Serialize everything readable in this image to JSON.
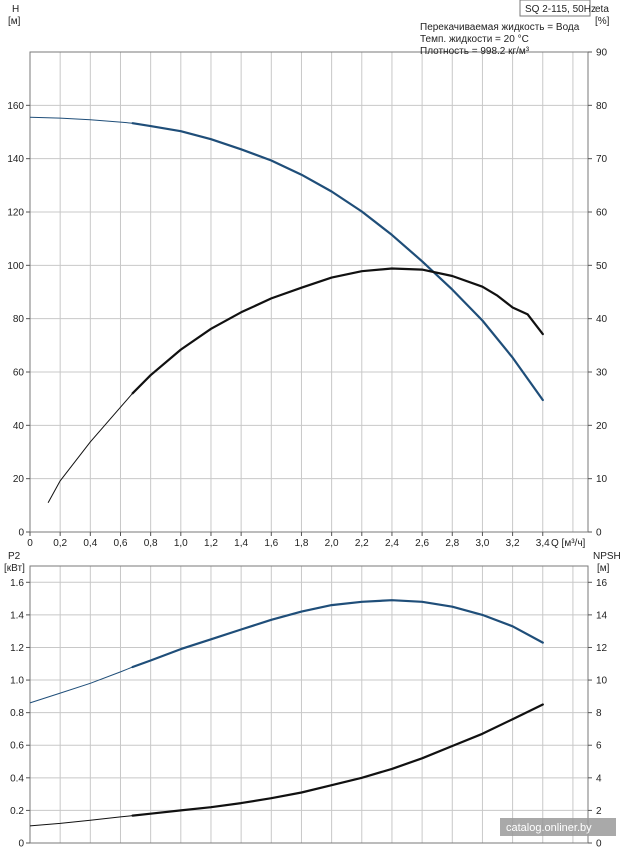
{
  "chart_data": [
    {
      "type": "line",
      "title": "SQ 2-115, 50Hz",
      "annotations": [
        "Перекачиваемая жидкость = Вода",
        "Темп. жидкости = 20 °C",
        "Плотность = 998.2 кг/м³"
      ],
      "xlabel": "Q [м³/ч]",
      "xlim": [
        0,
        3.7
      ],
      "x_ticks": [
        "0",
        "0,2",
        "0,4",
        "0,6",
        "0,8",
        "1,0",
        "1,2",
        "1,4",
        "1,6",
        "1,8",
        "2,0",
        "2,2",
        "2,4",
        "2,6",
        "2,8",
        "3,0",
        "3,2",
        "3,4"
      ],
      "ylabel_left": "H",
      "ylabel_left_unit": "[м]",
      "ylim_left": [
        0,
        180
      ],
      "y_ticks_left": [
        "0",
        "20",
        "40",
        "60",
        "80",
        "100",
        "120",
        "140",
        "160"
      ],
      "ylabel_right": "eta",
      "ylabel_right_unit": "[%]",
      "ylim_right": [
        0,
        90
      ],
      "y_ticks_right": [
        "0",
        "10",
        "20",
        "30",
        "40",
        "50",
        "60",
        "70",
        "80",
        "90"
      ],
      "grid": true,
      "series": [
        {
          "axis": "left",
          "color": "#1f4e79",
          "x": [
            0,
            0.2,
            0.4,
            0.6,
            0.68,
            0.8,
            1.0,
            1.2,
            1.4,
            1.6,
            1.8,
            2.0,
            2.2,
            2.4,
            2.6,
            2.8,
            3.0,
            3.2,
            3.4
          ],
          "values": [
            155.5,
            155.2,
            154.6,
            153.7,
            153.3,
            152.2,
            150.3,
            147.3,
            143.5,
            139.3,
            134.0,
            127.7,
            120.2,
            111.4,
            101.5,
            90.9,
            79.3,
            65.4,
            49.5
          ],
          "thin_until": 0.68
        },
        {
          "axis": "right",
          "color": "#111111",
          "x": [
            0.12,
            0.2,
            0.4,
            0.6,
            0.68,
            0.8,
            1.0,
            1.2,
            1.4,
            1.6,
            1.8,
            2.0,
            2.2,
            2.4,
            2.6,
            2.8,
            3.0,
            3.1,
            3.2,
            3.3,
            3.4
          ],
          "values": [
            5.5,
            9.6,
            16.9,
            23.4,
            26.0,
            29.4,
            34.2,
            38.1,
            41.2,
            43.8,
            45.8,
            47.7,
            48.9,
            49.4,
            49.2,
            48.0,
            46.0,
            44.3,
            42.1,
            40.8,
            37.1
          ],
          "thin_until": 0.68
        }
      ]
    },
    {
      "type": "line",
      "xlim": [
        0,
        3.7
      ],
      "ylabel_left": "P2",
      "ylabel_left_unit": "[кВт]",
      "ylim_left": [
        0,
        1.7
      ],
      "y_ticks_left": [
        "0",
        "0.2",
        "0.4",
        "0.6",
        "0.8",
        "1.0",
        "1.2",
        "1.4",
        "1.6"
      ],
      "ylabel_right": "NPSH",
      "ylabel_right_unit": "[м]",
      "ylim_right": [
        0,
        17
      ],
      "y_ticks_right": [
        "0",
        "2",
        "4",
        "6",
        "8",
        "10",
        "12",
        "14",
        "16"
      ],
      "grid": true,
      "series": [
        {
          "axis": "left",
          "color": "#1f4e79",
          "x": [
            0,
            0.2,
            0.4,
            0.6,
            0.68,
            0.8,
            1.0,
            1.2,
            1.4,
            1.6,
            1.8,
            2.0,
            2.2,
            2.4,
            2.6,
            2.8,
            3.0,
            3.2,
            3.4
          ],
          "values": [
            0.86,
            0.92,
            0.98,
            1.05,
            1.08,
            1.12,
            1.19,
            1.25,
            1.31,
            1.37,
            1.42,
            1.46,
            1.48,
            1.49,
            1.48,
            1.45,
            1.4,
            1.33,
            1.23
          ],
          "thin_until": 0.68
        },
        {
          "axis": "right",
          "color": "#111111",
          "x": [
            0,
            0.2,
            0.4,
            0.6,
            0.68,
            0.8,
            1.0,
            1.2,
            1.4,
            1.6,
            1.8,
            2.0,
            2.2,
            2.4,
            2.6,
            2.8,
            3.0,
            3.2,
            3.4
          ],
          "values": [
            1.05,
            1.2,
            1.4,
            1.6,
            1.68,
            1.8,
            2.0,
            2.2,
            2.45,
            2.75,
            3.1,
            3.55,
            4.0,
            4.55,
            5.2,
            5.95,
            6.7,
            7.6,
            8.5
          ],
          "thin_until": 0.68
        }
      ]
    }
  ],
  "watermark": "catalog.onliner.by"
}
